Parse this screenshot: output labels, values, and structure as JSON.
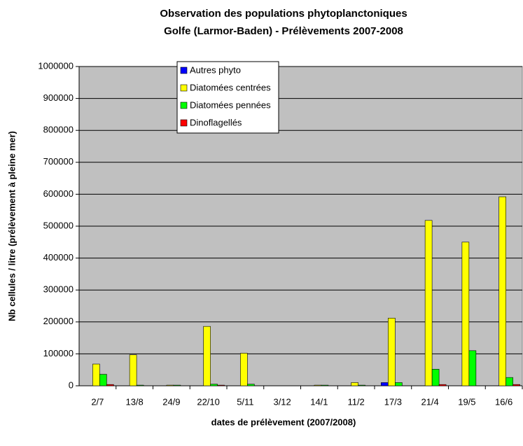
{
  "chart_data": {
    "type": "bar",
    "title": [
      "Observation des populations phytoplanctoniques",
      "Golfe (Larmor-Baden) - Prélèvements 2007-2008"
    ],
    "x_label": "dates de prélèvement (2007/2008)",
    "y_label": "Nb cellules / litre (prélèvement à pleine mer)",
    "categories": [
      "2/7",
      "13/8",
      "24/9",
      "22/10",
      "5/11",
      "3/12",
      "14/1",
      "11/2",
      "17/3",
      "21/4",
      "19/5",
      "16/6"
    ],
    "series": [
      {
        "name": "Autres phyto",
        "color": "#0000ff",
        "values": [
          0,
          0,
          0,
          0,
          0,
          0,
          0,
          0,
          10000,
          0,
          0,
          0
        ]
      },
      {
        "name": "Diatomées centrées",
        "color": "#ffff00",
        "values": [
          68000,
          97000,
          2000,
          186000,
          102000,
          0,
          2000,
          10000,
          212000,
          518000,
          450000,
          592000
        ]
      },
      {
        "name": "Diatomées pennées",
        "color": "#00ff00",
        "values": [
          36000,
          2000,
          2000,
          5000,
          5000,
          0,
          2000,
          2000,
          10000,
          52000,
          110000,
          26000
        ]
      },
      {
        "name": "Dinoflagellés",
        "color": "#ff0000",
        "values": [
          4000,
          0,
          0,
          2000,
          0,
          0,
          0,
          0,
          0,
          4000,
          0,
          4000
        ]
      }
    ],
    "ylim": [
      0,
      1000000
    ],
    "yticks": [
      0,
      100000,
      200000,
      300000,
      400000,
      500000,
      600000,
      700000,
      800000,
      900000,
      1000000
    ],
    "grid": true,
    "legend": "top"
  }
}
